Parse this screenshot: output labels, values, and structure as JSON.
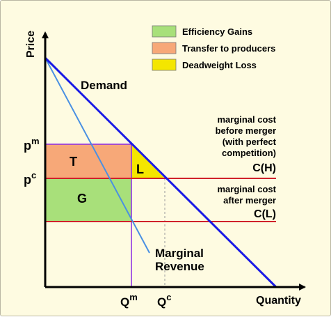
{
  "axes": {
    "y_label": "Price",
    "x_label": "Quantity"
  },
  "legend": [
    {
      "label": "Efficiency Gains",
      "color": "#a8e07a"
    },
    {
      "label": "Transfer to producers",
      "color": "#f7a878"
    },
    {
      "label": "Deadweight Loss",
      "color": "#f4e600"
    }
  ],
  "curves": {
    "demand": "Demand",
    "marginal_revenue_line1": "Marginal",
    "marginal_revenue_line2": "Revenue"
  },
  "price_ticks": {
    "pm_base": "p",
    "pm_sup": "m",
    "pc_base": "p",
    "pc_sup": "c"
  },
  "quantity_ticks": {
    "qm_base": "Q",
    "qm_sup": "m",
    "qc_base": "Q",
    "qc_sup": "c"
  },
  "regions": {
    "t": "T",
    "l": "L",
    "g": "G"
  },
  "cost_before": {
    "line1": "marginal cost",
    "line2": "before merger",
    "line3": "(with perfect",
    "line4": "competition)",
    "label": "C(H)"
  },
  "cost_after": {
    "line1": "marginal cost",
    "line2": "after merger",
    "label": "C(L)"
  },
  "colors": {
    "background": "#fefbe1",
    "demand": "#1a1ae6",
    "marginal_revenue": "#4a90e2",
    "cost_lines": "#d0212a",
    "quantity_guides": "#8a2be2"
  }
}
